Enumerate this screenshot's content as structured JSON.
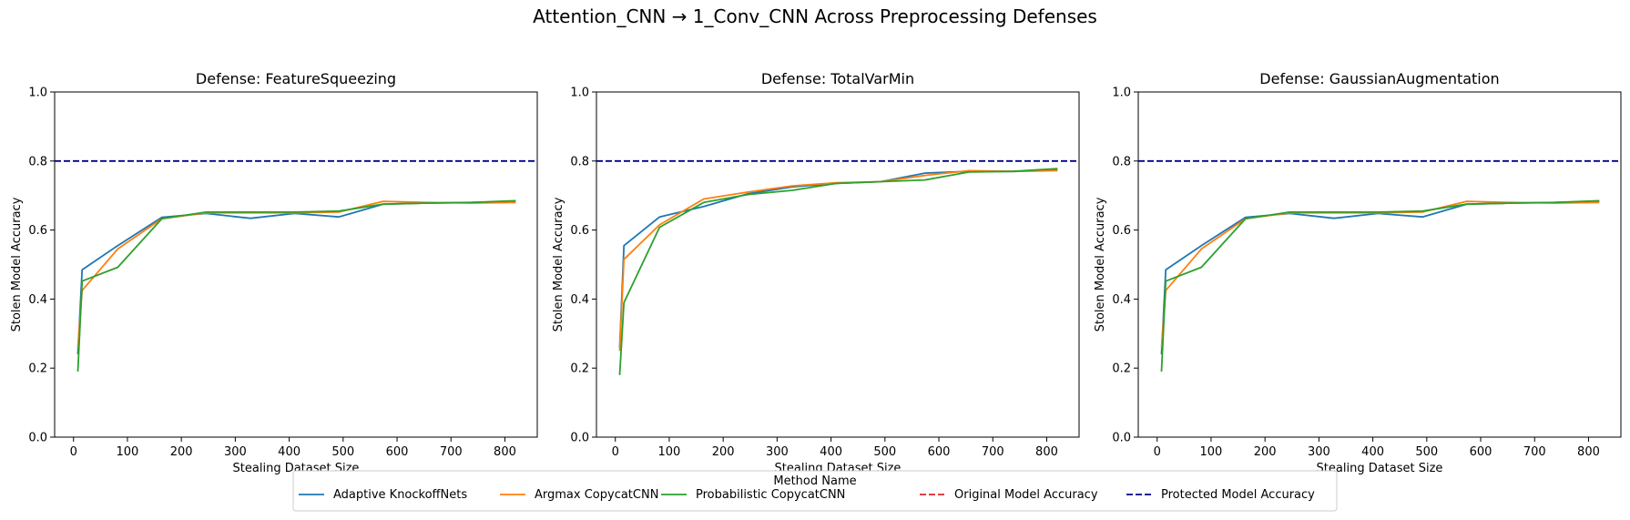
{
  "figure": {
    "suptitle": "Attention_CNN → 1_Conv_CNN Across Preprocessing Defenses"
  },
  "legend": {
    "title": "Method Name",
    "placement": "bottom-center",
    "entries": [
      {
        "label": "Adaptive KnockoffNets",
        "color": "#1f77b4",
        "style": "solid"
      },
      {
        "label": "Argmax CopycatCNN",
        "color": "#ff7f0e",
        "style": "solid"
      },
      {
        "label": "Probabilistic CopycatCNN",
        "color": "#2ca02c",
        "style": "solid"
      },
      {
        "label": "Original Model Accuracy",
        "color": "#d62728",
        "style": "dashed"
      },
      {
        "label": "Protected Model Accuracy",
        "color": "#00008b",
        "style": "dashed"
      }
    ]
  },
  "chart_data": [
    {
      "type": "line",
      "title": "Defense: FeatureSqueezing",
      "xlabel": "Stealing Dataset Size",
      "ylabel": "Stolen Model Accuracy",
      "xlim": [
        -35,
        860
      ],
      "ylim": [
        0,
        1.0
      ],
      "xticks": [
        0,
        100,
        200,
        300,
        400,
        500,
        600,
        700,
        800
      ],
      "yticks": [
        0.0,
        0.2,
        0.4,
        0.6,
        0.8,
        1.0
      ],
      "grid": false,
      "reference_lines": [
        {
          "name": "Protected Model Accuracy",
          "y": 0.8,
          "color": "#00008b"
        }
      ],
      "series": [
        {
          "name": "Adaptive KnockoffNets",
          "color": "#1f77b4",
          "x": [
            8,
            16,
            82,
            164,
            246,
            328,
            410,
            492,
            574,
            656,
            738,
            820
          ],
          "y": [
            0.24,
            0.485,
            0.555,
            0.637,
            0.648,
            0.634,
            0.648,
            0.638,
            0.675,
            0.678,
            0.68,
            0.683
          ]
        },
        {
          "name": "Argmax CopycatCNN",
          "color": "#ff7f0e",
          "x": [
            8,
            16,
            82,
            164,
            246,
            328,
            410,
            492,
            574,
            656,
            738,
            820
          ],
          "y": [
            0.26,
            0.425,
            0.545,
            0.633,
            0.65,
            0.65,
            0.65,
            0.652,
            0.683,
            0.68,
            0.678,
            0.68
          ]
        },
        {
          "name": "Probabilistic CopycatCNN",
          "color": "#2ca02c",
          "x": [
            8,
            16,
            82,
            164,
            246,
            328,
            410,
            492,
            574,
            656,
            738,
            820
          ],
          "y": [
            0.19,
            0.452,
            0.492,
            0.633,
            0.652,
            0.652,
            0.652,
            0.655,
            0.675,
            0.678,
            0.68,
            0.685
          ]
        }
      ]
    },
    {
      "type": "line",
      "title": "Defense: TotalVarMin",
      "xlabel": "Stealing Dataset Size",
      "ylabel": "Stolen Model Accuracy",
      "xlim": [
        -35,
        860
      ],
      "ylim": [
        0,
        1.0
      ],
      "xticks": [
        0,
        100,
        200,
        300,
        400,
        500,
        600,
        700,
        800
      ],
      "yticks": [
        0.0,
        0.2,
        0.4,
        0.6,
        0.8,
        1.0
      ],
      "grid": false,
      "reference_lines": [
        {
          "name": "Protected Model Accuracy",
          "y": 0.8,
          "color": "#00008b"
        }
      ],
      "series": [
        {
          "name": "Adaptive KnockoffNets",
          "color": "#1f77b4",
          "x": [
            8,
            16,
            82,
            164,
            246,
            328,
            410,
            492,
            574,
            656,
            738,
            820
          ],
          "y": [
            0.26,
            0.555,
            0.638,
            0.668,
            0.705,
            0.725,
            0.735,
            0.74,
            0.765,
            0.77,
            0.77,
            0.775
          ]
        },
        {
          "name": "Argmax CopycatCNN",
          "color": "#ff7f0e",
          "x": [
            8,
            16,
            82,
            164,
            246,
            328,
            410,
            492,
            574,
            656,
            738,
            820
          ],
          "y": [
            0.25,
            0.515,
            0.615,
            0.69,
            0.71,
            0.728,
            0.737,
            0.74,
            0.758,
            0.772,
            0.77,
            0.772
          ]
        },
        {
          "name": "Probabilistic CopycatCNN",
          "color": "#2ca02c",
          "x": [
            8,
            16,
            82,
            164,
            246,
            328,
            410,
            492,
            574,
            656,
            738,
            820
          ],
          "y": [
            0.18,
            0.39,
            0.608,
            0.68,
            0.703,
            0.715,
            0.735,
            0.74,
            0.745,
            0.768,
            0.77,
            0.778
          ]
        }
      ]
    },
    {
      "type": "line",
      "title": "Defense: GaussianAugmentation",
      "xlabel": "Stealing Dataset Size",
      "ylabel": "Stolen Model Accuracy",
      "xlim": [
        -35,
        860
      ],
      "ylim": [
        0,
        1.0
      ],
      "xticks": [
        0,
        100,
        200,
        300,
        400,
        500,
        600,
        700,
        800
      ],
      "yticks": [
        0.0,
        0.2,
        0.4,
        0.6,
        0.8,
        1.0
      ],
      "grid": false,
      "reference_lines": [
        {
          "name": "Protected Model Accuracy",
          "y": 0.8,
          "color": "#00008b"
        }
      ],
      "series": [
        {
          "name": "Adaptive KnockoffNets",
          "color": "#1f77b4",
          "x": [
            8,
            16,
            82,
            164,
            246,
            328,
            410,
            492,
            574,
            656,
            738,
            820
          ],
          "y": [
            0.24,
            0.485,
            0.555,
            0.637,
            0.648,
            0.634,
            0.648,
            0.638,
            0.675,
            0.678,
            0.68,
            0.683
          ]
        },
        {
          "name": "Argmax CopycatCNN",
          "color": "#ff7f0e",
          "x": [
            8,
            16,
            82,
            164,
            246,
            328,
            410,
            492,
            574,
            656,
            738,
            820
          ],
          "y": [
            0.26,
            0.425,
            0.545,
            0.633,
            0.65,
            0.65,
            0.65,
            0.652,
            0.683,
            0.68,
            0.678,
            0.68
          ]
        },
        {
          "name": "Probabilistic CopycatCNN",
          "color": "#2ca02c",
          "x": [
            8,
            16,
            82,
            164,
            246,
            328,
            410,
            492,
            574,
            656,
            738,
            820
          ],
          "y": [
            0.19,
            0.452,
            0.492,
            0.633,
            0.652,
            0.652,
            0.652,
            0.655,
            0.675,
            0.678,
            0.68,
            0.685
          ]
        }
      ]
    }
  ]
}
